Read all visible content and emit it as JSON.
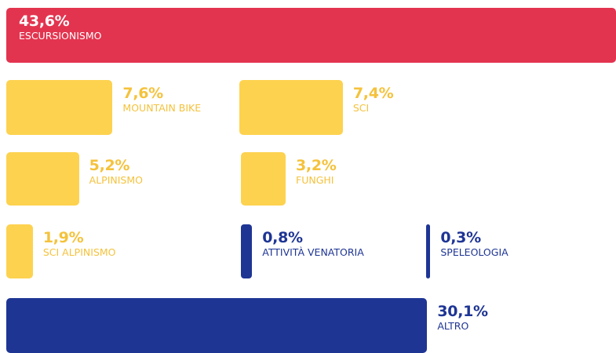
{
  "chart_data": {
    "type": "bar",
    "categories": [
      "ESCURSIONISMO",
      "MOUNTAIN BIKE",
      "SCI",
      "ALPINISMO",
      "FUNGHI",
      "SCI ALPINISMO",
      "ATTIVITÀ VENATORIA",
      "SPELEOLOGIA",
      "ALTRO"
    ],
    "values": [
      43.6,
      7.6,
      7.4,
      5.2,
      3.2,
      1.9,
      0.8,
      0.3,
      30.1
    ],
    "value_labels": [
      "43,6%",
      "7,6%",
      "7,4%",
      "5,2%",
      "3,2%",
      "1,9%",
      "0,8%",
      "0,3%",
      "30,1%"
    ],
    "colors": [
      "#e3344f",
      "#fdd24f",
      "#fdd24f",
      "#fdd24f",
      "#fdd24f",
      "#fdd24f",
      "#1e3594",
      "#1e3594",
      "#1e3594"
    ]
  }
}
